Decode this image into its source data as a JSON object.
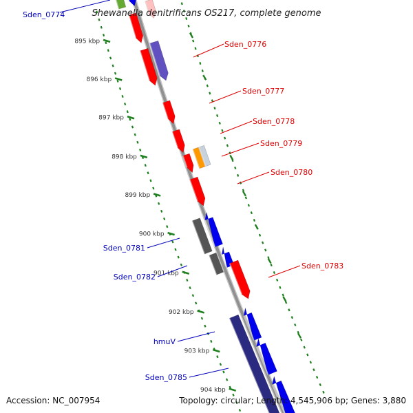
{
  "title": "Shewanella denitrificans OS217, complete genome",
  "footer": {
    "accession": "Accession: NC_007954",
    "summary": "Topology: circular; Length: 4,545,906 bp; Genes: 3,880"
  },
  "colors": {
    "backbone": "#909090",
    "tick": "#1f7f1f",
    "red_gene": "#ff0000",
    "blue_gene": "#0000ee",
    "purple_gene": "#6050c0",
    "navy_gene": "#2a2a80",
    "gray_gene": "#555555",
    "orange_gene": "#ff9900",
    "pink_gene": "#ffc0c0",
    "green_gene": "#66aa33",
    "red_label": "#dd0000",
    "blue_label": "#0000bb"
  },
  "kbp_ticks": [
    "895 kbp",
    "896 kbp",
    "897 kbp",
    "898 kbp",
    "899 kbp",
    "900 kbp",
    "901 kbp",
    "902 kbp",
    "903 kbp",
    "904 kbp"
  ],
  "labels": [
    {
      "text": "Sden_0774",
      "color": "blue"
    },
    {
      "text": "Sden_0776",
      "color": "red"
    },
    {
      "text": "Sden_0777",
      "color": "red"
    },
    {
      "text": "Sden_0778",
      "color": "red"
    },
    {
      "text": "Sden_0779",
      "color": "red"
    },
    {
      "text": "Sden_0780",
      "color": "red"
    },
    {
      "text": "Sden_0781",
      "color": "blue"
    },
    {
      "text": "Sden_0782",
      "color": "blue"
    },
    {
      "text": "Sden_0783",
      "color": "red"
    },
    {
      "text": "hmuV",
      "color": "blue"
    },
    {
      "text": "Sden_0785",
      "color": "blue"
    }
  ]
}
